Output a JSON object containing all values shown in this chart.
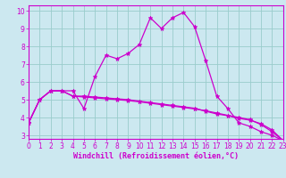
{
  "xlabel": "Windchill (Refroidissement éolien,°C)",
  "bg_color": "#cce8f0",
  "line_color": "#cc00cc",
  "grid_color": "#99cccc",
  "x_values": [
    0,
    1,
    2,
    3,
    4,
    5,
    6,
    7,
    8,
    9,
    10,
    11,
    12,
    13,
    14,
    15,
    16,
    17,
    18,
    19,
    20,
    21,
    22,
    23
  ],
  "line1_y": [
    3.7,
    5.0,
    5.5,
    5.5,
    5.5,
    4.5,
    6.3,
    7.5,
    7.3,
    7.6,
    8.1,
    9.6,
    9.0,
    9.6,
    9.9,
    9.1,
    7.2,
    5.2,
    4.5,
    3.7,
    3.5,
    3.2,
    3.0,
    2.7
  ],
  "line2_y": [
    3.7,
    5.0,
    5.5,
    5.5,
    5.2,
    5.2,
    5.15,
    5.1,
    5.05,
    5.0,
    4.92,
    4.84,
    4.76,
    4.68,
    4.6,
    4.52,
    4.35,
    4.2,
    4.1,
    3.95,
    3.85,
    3.65,
    3.3,
    2.7
  ],
  "line3_y": [
    3.7,
    5.0,
    5.5,
    5.5,
    5.2,
    5.15,
    5.1,
    5.05,
    5.0,
    4.95,
    4.88,
    4.8,
    4.72,
    4.64,
    4.56,
    4.48,
    4.38,
    4.25,
    4.12,
    4.0,
    3.88,
    3.6,
    3.2,
    2.7
  ],
  "xlim": [
    0,
    23
  ],
  "ylim": [
    2.8,
    10.3
  ],
  "yticks": [
    3,
    4,
    5,
    6,
    7,
    8,
    9,
    10
  ],
  "xticks": [
    0,
    1,
    2,
    3,
    4,
    5,
    6,
    7,
    8,
    9,
    10,
    11,
    12,
    13,
    14,
    15,
    16,
    17,
    18,
    19,
    20,
    21,
    22,
    23
  ],
  "tick_fontsize": 5.5,
  "xlabel_fontsize": 6.0,
  "marker_size": 3.5,
  "linewidth": 0.9
}
